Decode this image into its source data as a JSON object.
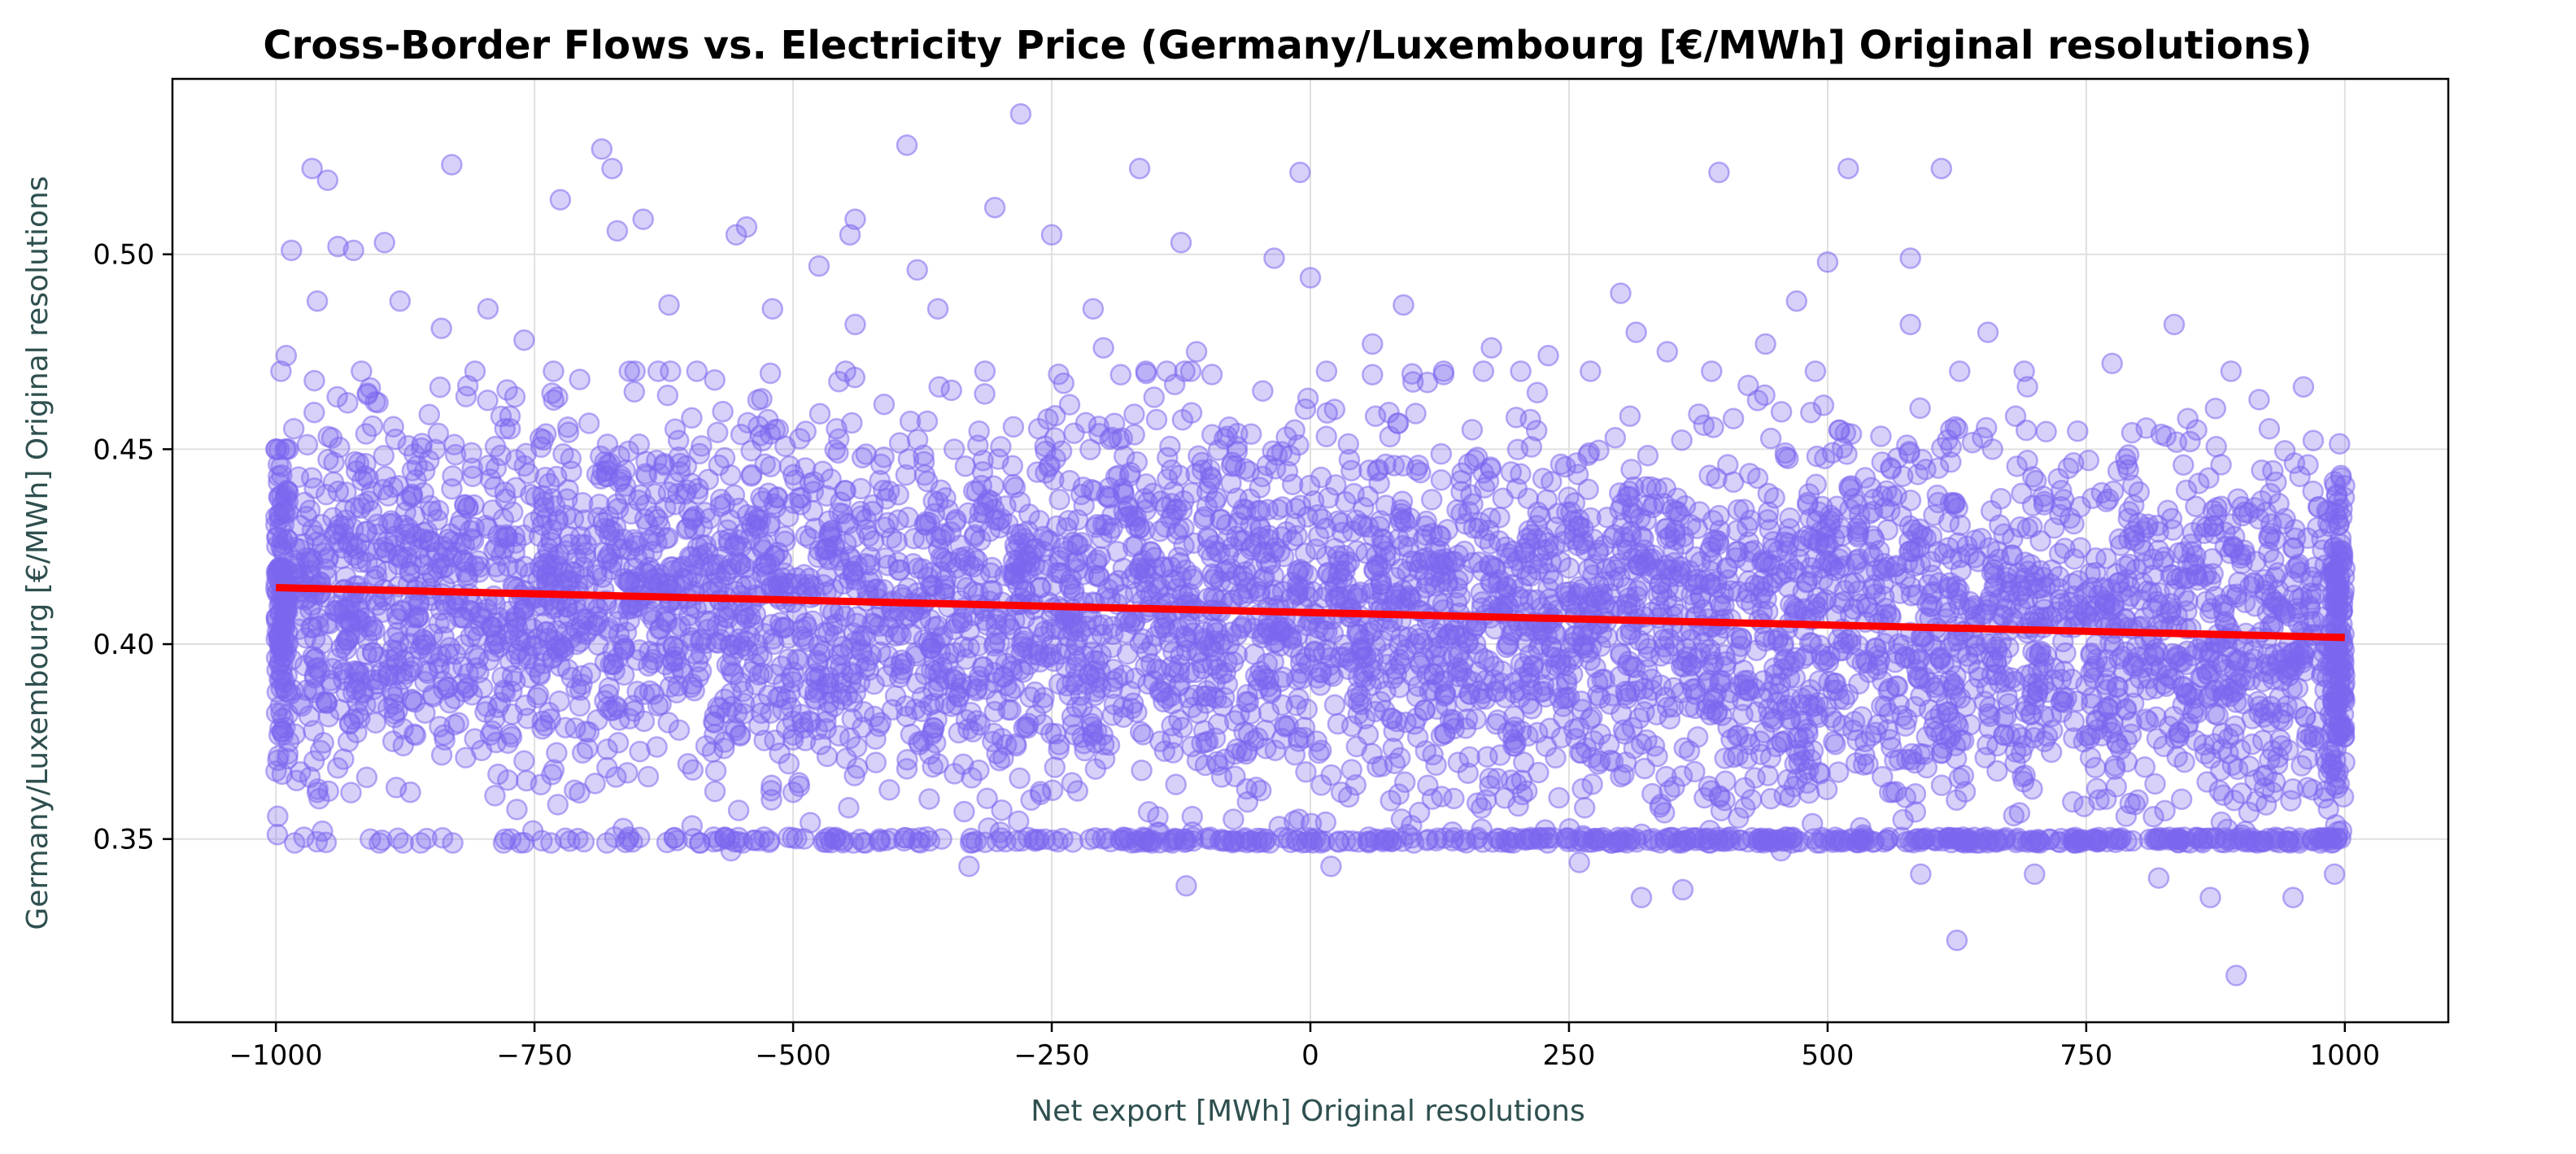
{
  "chart_data": {
    "type": "scatter",
    "title": "Cross-Border Flows vs. Electricity Price (Germany/Luxembourg [€/MWh] Original resolutions)",
    "xlabel": "Net export [MWh] Original resolutions",
    "ylabel": "Germany/Luxembourg [€/MWh] Original resolutions",
    "xlim": [
      -1100,
      1100
    ],
    "ylim": [
      0.303,
      0.545
    ],
    "xticks": [
      -1000,
      -750,
      -500,
      -250,
      0,
      250,
      500,
      750,
      1000
    ],
    "xtick_labels": [
      "−1000",
      "−750",
      "−500",
      "−250",
      "0",
      "250",
      "500",
      "750",
      "1000"
    ],
    "yticks": [
      0.35,
      0.4,
      0.45,
      0.5
    ],
    "ytick_labels": [
      "0.35",
      "0.40",
      "0.45",
      "0.50"
    ],
    "grid": true,
    "colors": {
      "points": "#7b68ee",
      "trend": "#ff0000"
    },
    "trend_line": {
      "x": [
        -1000,
        1000
      ],
      "y": [
        0.4145,
        0.4017
      ]
    },
    "scatter_summary": {
      "x_range": [
        -1000,
        1000
      ],
      "y_floor": 0.349,
      "y_core_range": [
        0.385,
        0.435
      ]
    },
    "points": [
      [
        -985,
        0.501
      ],
      [
        -965,
        0.522
      ],
      [
        -950,
        0.519
      ],
      [
        -940,
        0.502
      ],
      [
        -925,
        0.501
      ],
      [
        -895,
        0.503
      ],
      [
        -830,
        0.523
      ],
      [
        -795,
        0.486
      ],
      [
        -725,
        0.514
      ],
      [
        -685,
        0.527
      ],
      [
        -675,
        0.522
      ],
      [
        -670,
        0.506
      ],
      [
        -645,
        0.509
      ],
      [
        -555,
        0.505
      ],
      [
        -545,
        0.507
      ],
      [
        -475,
        0.497
      ],
      [
        -445,
        0.505
      ],
      [
        -440,
        0.509
      ],
      [
        -390,
        0.528
      ],
      [
        -380,
        0.496
      ],
      [
        -305,
        0.512
      ],
      [
        -280,
        0.536
      ],
      [
        -250,
        0.505
      ],
      [
        -210,
        0.486
      ],
      [
        -165,
        0.522
      ],
      [
        -125,
        0.503
      ],
      [
        -35,
        0.499
      ],
      [
        -10,
        0.521
      ],
      [
        0,
        0.494
      ],
      [
        90,
        0.487
      ],
      [
        175,
        0.476
      ],
      [
        300,
        0.49
      ],
      [
        315,
        0.48
      ],
      [
        345,
        0.475
      ],
      [
        395,
        0.521
      ],
      [
        470,
        0.488
      ],
      [
        500,
        0.498
      ],
      [
        520,
        0.522
      ],
      [
        580,
        0.499
      ],
      [
        580,
        0.482
      ],
      [
        610,
        0.522
      ],
      [
        655,
        0.48
      ],
      [
        835,
        0.482
      ],
      [
        890,
        0.47
      ],
      [
        960,
        0.466
      ],
      [
        -990,
        0.474
      ],
      [
        -960,
        0.488
      ],
      [
        -880,
        0.488
      ],
      [
        -840,
        0.481
      ],
      [
        -760,
        0.478
      ],
      [
        -620,
        0.487
      ],
      [
        -520,
        0.486
      ],
      [
        -440,
        0.482
      ],
      [
        -360,
        0.486
      ],
      [
        -200,
        0.476
      ],
      [
        -110,
        0.475
      ],
      [
        60,
        0.477
      ],
      [
        230,
        0.474
      ],
      [
        440,
        0.477
      ],
      [
        690,
        0.47
      ],
      [
        775,
        0.472
      ],
      [
        -980,
        0.365
      ],
      [
        -960,
        0.362
      ],
      [
        -955,
        0.352
      ],
      [
        -900,
        0.349
      ],
      [
        -860,
        0.349
      ],
      [
        -780,
        0.349
      ],
      [
        -680,
        0.349
      ],
      [
        -560,
        0.347
      ],
      [
        -430,
        0.349
      ],
      [
        -330,
        0.343
      ],
      [
        -120,
        0.338
      ],
      [
        20,
        0.343
      ],
      [
        100,
        0.349
      ],
      [
        260,
        0.344
      ],
      [
        320,
        0.335
      ],
      [
        360,
        0.337
      ],
      [
        455,
        0.347
      ],
      [
        590,
        0.341
      ],
      [
        625,
        0.324
      ],
      [
        700,
        0.341
      ],
      [
        820,
        0.34
      ],
      [
        870,
        0.335
      ],
      [
        895,
        0.315
      ],
      [
        950,
        0.335
      ],
      [
        990,
        0.341
      ],
      [
        -930,
        0.375
      ],
      [
        -870,
        0.362
      ],
      [
        -760,
        0.37
      ],
      [
        -640,
        0.366
      ],
      [
        -500,
        0.362
      ],
      [
        -390,
        0.368
      ],
      [
        -270,
        0.36
      ],
      [
        -130,
        0.364
      ],
      [
        30,
        0.362
      ],
      [
        170,
        0.36
      ],
      [
        300,
        0.366
      ],
      [
        420,
        0.358
      ],
      [
        560,
        0.362
      ],
      [
        680,
        0.356
      ],
      [
        800,
        0.36
      ],
      [
        930,
        0.362
      ]
    ]
  }
}
